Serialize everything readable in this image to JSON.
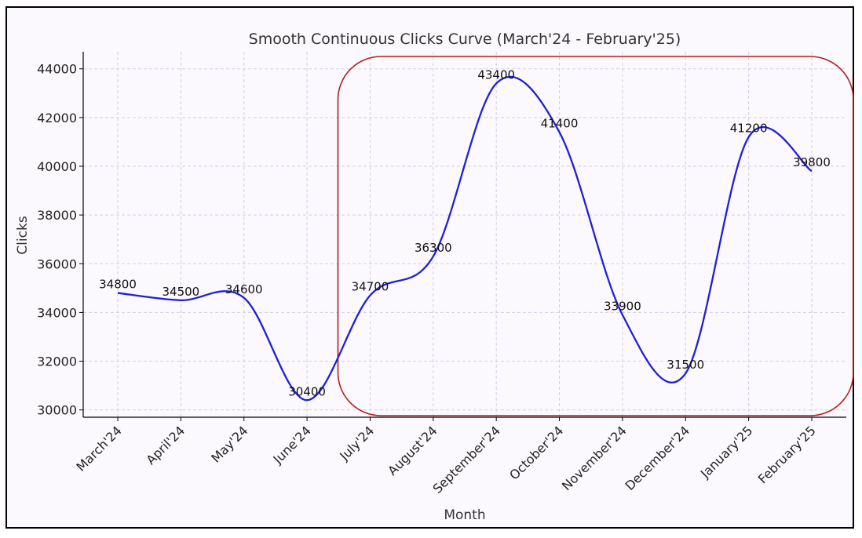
{
  "chart_data": {
    "type": "line",
    "title": "Smooth Continuous Clicks Curve (March'24 - February'25)",
    "xlabel": "Month",
    "ylabel": "Clicks",
    "categories": [
      "March'24",
      "April'24",
      "May'24",
      "June'24",
      "July'24",
      "August'24",
      "September'24",
      "October'24",
      "November'24",
      "December'24",
      "January'25",
      "February'25"
    ],
    "values": [
      34800,
      34500,
      34600,
      30400,
      34700,
      36300,
      43400,
      41400,
      33900,
      31500,
      41200,
      39800
    ],
    "yticks": [
      30000,
      32000,
      34000,
      36000,
      38000,
      40000,
      42000,
      44000
    ],
    "ylim": [
      29700,
      44700
    ],
    "grid": true,
    "line_color": "#1f1fd6",
    "highlight": {
      "from_category": "June'24",
      "to_category": "February'25",
      "color": "#b71c1c"
    }
  }
}
